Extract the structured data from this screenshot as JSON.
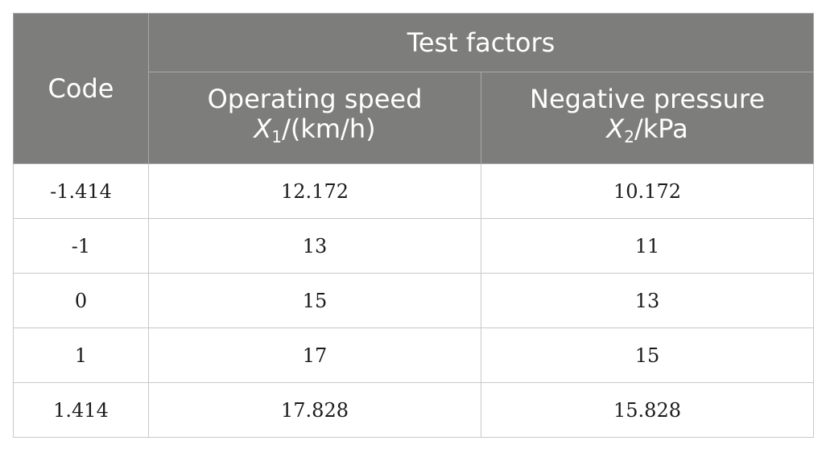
{
  "table": {
    "code_header": "Code",
    "group_header": "Test factors",
    "columns": [
      {
        "label": "Operating speed",
        "var": "X",
        "sub": "1",
        "unit": "/(km/h)"
      },
      {
        "label": "Negative pressure",
        "var": "X",
        "sub": "2",
        "unit": "/kPa"
      }
    ],
    "rows": [
      {
        "code": "-1.414",
        "speed": "12.172",
        "pressure": "10.172"
      },
      {
        "code": "-1",
        "speed": "13",
        "pressure": "11"
      },
      {
        "code": "0",
        "speed": "15",
        "pressure": "13"
      },
      {
        "code": "1",
        "speed": "17",
        "pressure": "15"
      },
      {
        "code": "1.414",
        "speed": "17.828",
        "pressure": "15.828"
      }
    ]
  }
}
